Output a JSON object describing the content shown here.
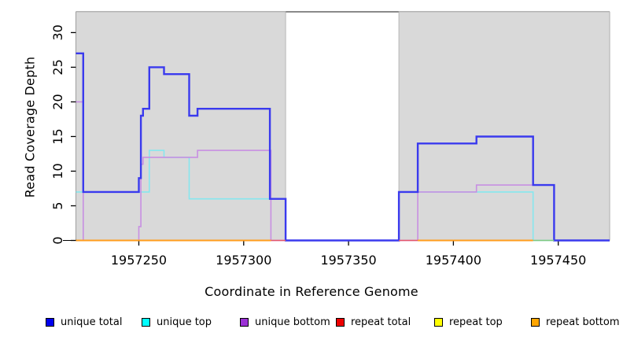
{
  "chart_data": {
    "type": "line",
    "style": "step-coverage-plot",
    "title": "",
    "xlabel": "Coordinate in Reference Genome",
    "ylabel": "Read Coverage Depth",
    "xlim": [
      1957220,
      1957474.5
    ],
    "ylim": [
      0,
      33
    ],
    "x_ticks": [
      1957250,
      1957300,
      1957350,
      1957400,
      1957450
    ],
    "y_ticks": [
      0,
      5,
      10,
      15,
      20,
      25,
      30
    ],
    "grid": false,
    "legend_position": "bottom",
    "shaded_region_color": "#d9d9d9",
    "shaded_regions": [
      {
        "x0": 1957220,
        "x1": 1957320
      },
      {
        "x0": 1957374,
        "x1": 1957474.5
      }
    ],
    "series": [
      {
        "name": "unique total",
        "legend_color": "#0000ee",
        "line_color": "#3a3aee",
        "line_width": 2.4,
        "z": 6,
        "points": [
          [
            1957220,
            27
          ],
          [
            1957223.5,
            27
          ],
          [
            1957223.5,
            7
          ],
          [
            1957250,
            7
          ],
          [
            1957250,
            9
          ],
          [
            1957251,
            9
          ],
          [
            1957251,
            18
          ],
          [
            1957252,
            18
          ],
          [
            1957252,
            19
          ],
          [
            1957255,
            19
          ],
          [
            1957255,
            25
          ],
          [
            1957262,
            25
          ],
          [
            1957262,
            24
          ],
          [
            1957274,
            24
          ],
          [
            1957274,
            18
          ],
          [
            1957278,
            18
          ],
          [
            1957278,
            19
          ],
          [
            1957312.5,
            19
          ],
          [
            1957312.5,
            6
          ],
          [
            1957320,
            6
          ],
          [
            1957320,
            0
          ],
          [
            1957374,
            0
          ],
          [
            1957374,
            7
          ],
          [
            1957383,
            7
          ],
          [
            1957383,
            14
          ],
          [
            1957411,
            14
          ],
          [
            1957411,
            15
          ],
          [
            1957438,
            15
          ],
          [
            1957438,
            8
          ],
          [
            1957448,
            8
          ],
          [
            1957448,
            0
          ],
          [
            1957474.5,
            0
          ]
        ]
      },
      {
        "name": "unique top",
        "legend_color": "#00ffff",
        "line_color": "#86e7ee",
        "line_width": 1.6,
        "z": 4,
        "points": [
          [
            1957220,
            7
          ],
          [
            1957255,
            7
          ],
          [
            1957255,
            13
          ],
          [
            1957262,
            13
          ],
          [
            1957262,
            12
          ],
          [
            1957274,
            12
          ],
          [
            1957274,
            6
          ],
          [
            1957320,
            6
          ],
          [
            1957320,
            0
          ],
          [
            1957374,
            0
          ],
          [
            1957374,
            7
          ],
          [
            1957438,
            7
          ],
          [
            1957438,
            0
          ],
          [
            1957474.5,
            0
          ]
        ]
      },
      {
        "name": "unique bottom",
        "legend_color": "#9b30d5",
        "line_color": "#c88fe2",
        "line_width": 1.6,
        "z": 5,
        "points": [
          [
            1957220,
            20
          ],
          [
            1957223.5,
            20
          ],
          [
            1957223.5,
            0
          ],
          [
            1957250,
            0
          ],
          [
            1957250,
            2
          ],
          [
            1957251,
            2
          ],
          [
            1957251,
            11
          ],
          [
            1957252,
            11
          ],
          [
            1957252,
            12
          ],
          [
            1957278,
            12
          ],
          [
            1957278,
            13
          ],
          [
            1957313,
            13
          ],
          [
            1957313,
            0
          ],
          [
            1957383,
            0
          ],
          [
            1957383,
            7
          ],
          [
            1957411,
            7
          ],
          [
            1957411,
            8
          ],
          [
            1957448,
            8
          ],
          [
            1957448,
            0
          ],
          [
            1957474.5,
            0
          ]
        ]
      },
      {
        "name": "repeat total",
        "legend_color": "#ee0000",
        "line_color": "#e4556a",
        "line_width": 1.6,
        "z": 7,
        "value": 0,
        "zero_segments": [
          [
            1957313,
            1957320
          ],
          [
            1957374,
            1957383
          ]
        ]
      },
      {
        "name": "repeat top",
        "legend_color": "#ffff00",
        "line_color": "#80c880",
        "line_width": 1.6,
        "z": 8,
        "value": 0,
        "zero_segments": [
          [
            1957438,
            1957448
          ]
        ]
      },
      {
        "name": "repeat bottom",
        "legend_color": "#ffa500",
        "line_color": "#ff9d1c",
        "line_width": 2,
        "z": 9,
        "value": 0,
        "zero_segments": [
          [
            1957220,
            1957313
          ],
          [
            1957383,
            1957438
          ]
        ]
      }
    ]
  }
}
